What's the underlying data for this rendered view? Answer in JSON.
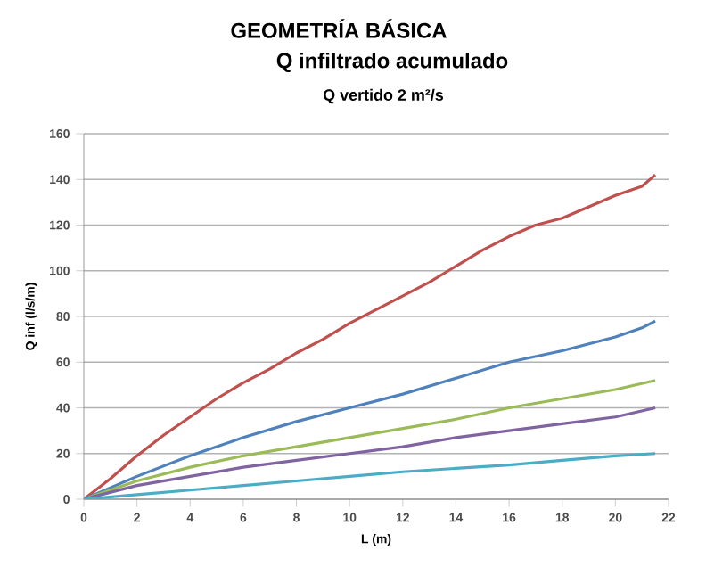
{
  "chart_data": {
    "type": "line",
    "title": "GEOMETRÍA BÁSICA",
    "subtitle": "Q infiltrado acumulado",
    "annotations": [
      "Q vertido 2 m²/s"
    ],
    "xlabel": "L (m)",
    "ylabel": "Q inf  (l/s/m)",
    "xlim": [
      0,
      22
    ],
    "xticks": [
      0,
      2,
      4,
      6,
      8,
      10,
      12,
      14,
      16,
      18,
      20,
      22
    ],
    "ylim": [
      0,
      160
    ],
    "yticks": [
      0,
      20,
      40,
      60,
      80,
      100,
      120,
      140,
      160
    ],
    "grid": "y",
    "marker": "none",
    "line_style": "solid",
    "series": [
      {
        "color": "#c0504d",
        "x": [
          0,
          1,
          2,
          3,
          4,
          5,
          6,
          7,
          8,
          9,
          10,
          11,
          12,
          13,
          14,
          15,
          16,
          17,
          18,
          19,
          20,
          21,
          21.5
        ],
        "values": [
          0,
          9,
          19,
          28,
          36,
          44,
          51,
          57,
          64,
          70,
          77,
          83,
          89,
          95,
          102,
          109,
          115,
          120,
          123,
          128,
          133,
          137,
          142
        ]
      },
      {
        "color": "#4f81bd",
        "x": [
          0,
          2,
          4,
          6,
          8,
          10,
          12,
          14,
          16,
          18,
          20,
          21,
          21.5
        ],
        "values": [
          0,
          10,
          19,
          27,
          34,
          40,
          46,
          53,
          60,
          65,
          71,
          75,
          78
        ]
      },
      {
        "color": "#9bbb59",
        "x": [
          0,
          2,
          4,
          6,
          8,
          10,
          12,
          14,
          16,
          18,
          20,
          21.5
        ],
        "values": [
          0,
          8,
          14,
          19,
          23,
          27,
          31,
          35,
          40,
          44,
          48,
          52
        ]
      },
      {
        "color": "#8064a2",
        "x": [
          0,
          2,
          4,
          6,
          8,
          10,
          12,
          14,
          16,
          18,
          20,
          21.5
        ],
        "values": [
          0,
          6,
          10,
          14,
          17,
          20,
          23,
          27,
          30,
          33,
          36,
          40
        ]
      },
      {
        "color": "#4bacc6",
        "x": [
          0,
          2,
          4,
          6,
          8,
          10,
          12,
          14,
          16,
          18,
          20,
          21.5
        ],
        "values": [
          0,
          2,
          4,
          6,
          8,
          10,
          12,
          13.5,
          15,
          17,
          19,
          20
        ]
      }
    ]
  }
}
